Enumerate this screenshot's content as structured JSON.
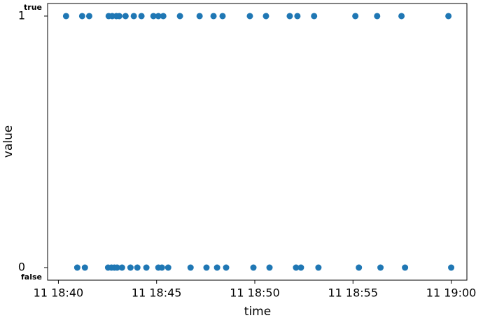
{
  "chart_data": {
    "type": "scatter",
    "x_label": "time",
    "y_label": "value",
    "xlim": [
      1119.45,
      1140.8
    ],
    "xticks": [
      {
        "value": 1120,
        "label": "11 18:40"
      },
      {
        "value": 1125,
        "label": "11 18:45"
      },
      {
        "value": 1130,
        "label": "11 18:50"
      },
      {
        "value": 1135,
        "label": "11 18:55"
      },
      {
        "value": 1140,
        "label": "11 19:00"
      }
    ],
    "ylim": [
      -0.05,
      1.05
    ],
    "yticks": [
      0,
      1
    ],
    "ytick_sublabels": [
      "false",
      "true"
    ],
    "series": [
      {
        "color": "#1f77b4",
        "x": [
          1120.39,
          1121.21,
          1121.57,
          1122.56,
          1122.74,
          1122.95,
          1123.1,
          1123.42,
          1123.84,
          1124.23,
          1124.84,
          1125.09,
          1125.34,
          1126.19,
          1127.19,
          1127.9,
          1128.36,
          1129.75,
          1130.57,
          1131.78,
          1132.17,
          1133.02,
          1135.12,
          1136.23,
          1137.47,
          1139.86,
          1120.96,
          1121.35,
          1122.53,
          1122.7,
          1122.85,
          1122.99,
          1123.24,
          1123.67,
          1124.02,
          1124.48,
          1125.09,
          1125.27,
          1125.59,
          1126.73,
          1127.54,
          1128.08,
          1128.54,
          1129.93,
          1130.75,
          1132.1,
          1132.35,
          1133.24,
          1135.3,
          1136.4,
          1137.65,
          1140.0
        ],
        "values": [
          1,
          1,
          1,
          1,
          1,
          1,
          1,
          1,
          1,
          1,
          1,
          1,
          1,
          1,
          1,
          1,
          1,
          1,
          1,
          1,
          1,
          1,
          1,
          1,
          1,
          1,
          0,
          0,
          0,
          0,
          0,
          0,
          0,
          0,
          0,
          0,
          0,
          0,
          0,
          0,
          0,
          0,
          0,
          0,
          0,
          0,
          0,
          0,
          0,
          0,
          0,
          0
        ]
      }
    ]
  }
}
